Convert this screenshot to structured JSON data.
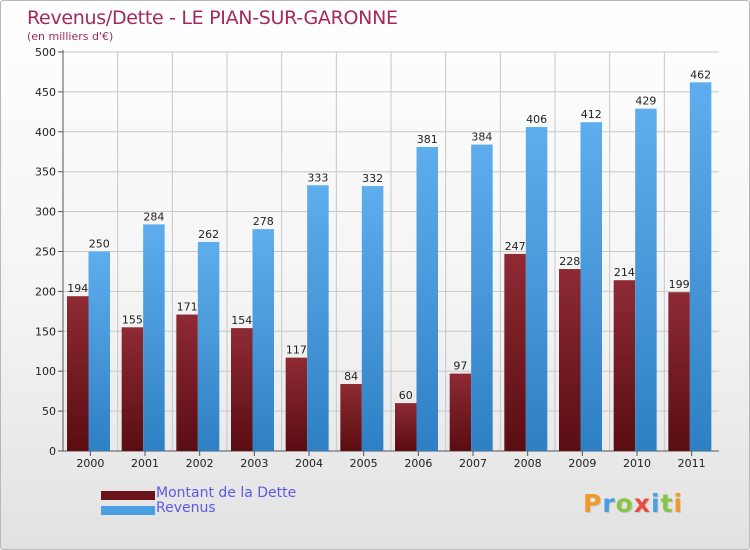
{
  "chart_data": {
    "type": "bar",
    "title": "Revenus/Dette - LE PIAN-SUR-GARONNE",
    "subtitle": "(en milliers d'€)",
    "xlabel": "",
    "ylabel": "",
    "ylim": [
      0,
      500
    ],
    "yticks": [
      0,
      50,
      100,
      150,
      200,
      250,
      300,
      350,
      400,
      450,
      500
    ],
    "grid": true,
    "categories": [
      "2000",
      "2001",
      "2002",
      "2003",
      "2004",
      "2005",
      "2006",
      "2007",
      "2008",
      "2009",
      "2010",
      "2011"
    ],
    "series": [
      {
        "name": "Montant de la Dette",
        "color": "#7a1c22",
        "values": [
          194,
          155,
          171,
          154,
          117,
          84,
          60,
          97,
          247,
          228,
          214,
          199
        ]
      },
      {
        "name": "Revenus",
        "color": "#4a9fe2",
        "values": [
          250,
          284,
          262,
          278,
          333,
          332,
          381,
          384,
          406,
          412,
          429,
          462
        ]
      }
    ],
    "legend_position": "bottom-left"
  },
  "logo": {
    "letters": [
      "P",
      "r",
      "o",
      "x",
      "i",
      "t",
      "i"
    ],
    "colors": [
      "#f09a28",
      "#4a9fe2",
      "#8bc34a",
      "#e94e3c",
      "#4a9fe2",
      "#8bc34a",
      "#f09a28"
    ]
  }
}
